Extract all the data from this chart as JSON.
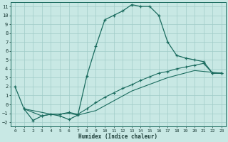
{
  "bg_color": "#c8e8e4",
  "grid_color": "#a0ccc8",
  "line_color": "#1a6b5e",
  "xlabel": "Humidex (Indice chaleur)",
  "xlim": [
    -0.5,
    23.5
  ],
  "ylim": [
    -2.5,
    11.5
  ],
  "xticks": [
    0,
    1,
    2,
    3,
    4,
    5,
    6,
    7,
    8,
    9,
    10,
    11,
    12,
    13,
    14,
    15,
    16,
    17,
    18,
    19,
    20,
    21,
    22,
    23
  ],
  "yticks": [
    -2,
    -1,
    0,
    1,
    2,
    3,
    4,
    5,
    6,
    7,
    8,
    9,
    10,
    11
  ],
  "main_x": [
    0,
    1,
    2,
    3,
    4,
    5,
    6,
    7,
    8,
    9,
    10,
    11,
    12,
    13,
    14,
    15,
    16,
    17,
    18,
    19,
    20,
    21,
    22,
    23
  ],
  "main_y": [
    2.0,
    -0.5,
    -1.8,
    -1.3,
    -1.1,
    -1.3,
    -1.7,
    -1.2,
    3.2,
    6.5,
    9.5,
    10.0,
    10.5,
    11.2,
    11.0,
    11.0,
    10.0,
    7.0,
    5.5,
    5.2,
    5.0,
    4.8,
    3.5,
    3.5
  ],
  "diag1_x": [
    1,
    3,
    4,
    5,
    6,
    7,
    8,
    9,
    10,
    11,
    12,
    13,
    14,
    15,
    16,
    17,
    18,
    19,
    20,
    21,
    22,
    23
  ],
  "diag1_y": [
    -0.5,
    -1.3,
    -1.1,
    -1.1,
    -0.9,
    -1.1,
    -0.5,
    0.2,
    0.8,
    1.3,
    1.8,
    2.2,
    2.7,
    3.1,
    3.5,
    3.7,
    4.0,
    4.2,
    4.4,
    4.6,
    3.5,
    3.5
  ],
  "diag2_x": [
    1,
    4,
    5,
    6,
    7,
    9,
    13,
    17,
    20,
    23
  ],
  "diag2_y": [
    -0.5,
    -1.1,
    -1.1,
    -1.0,
    -1.2,
    -0.7,
    1.5,
    3.0,
    3.8,
    3.5
  ]
}
